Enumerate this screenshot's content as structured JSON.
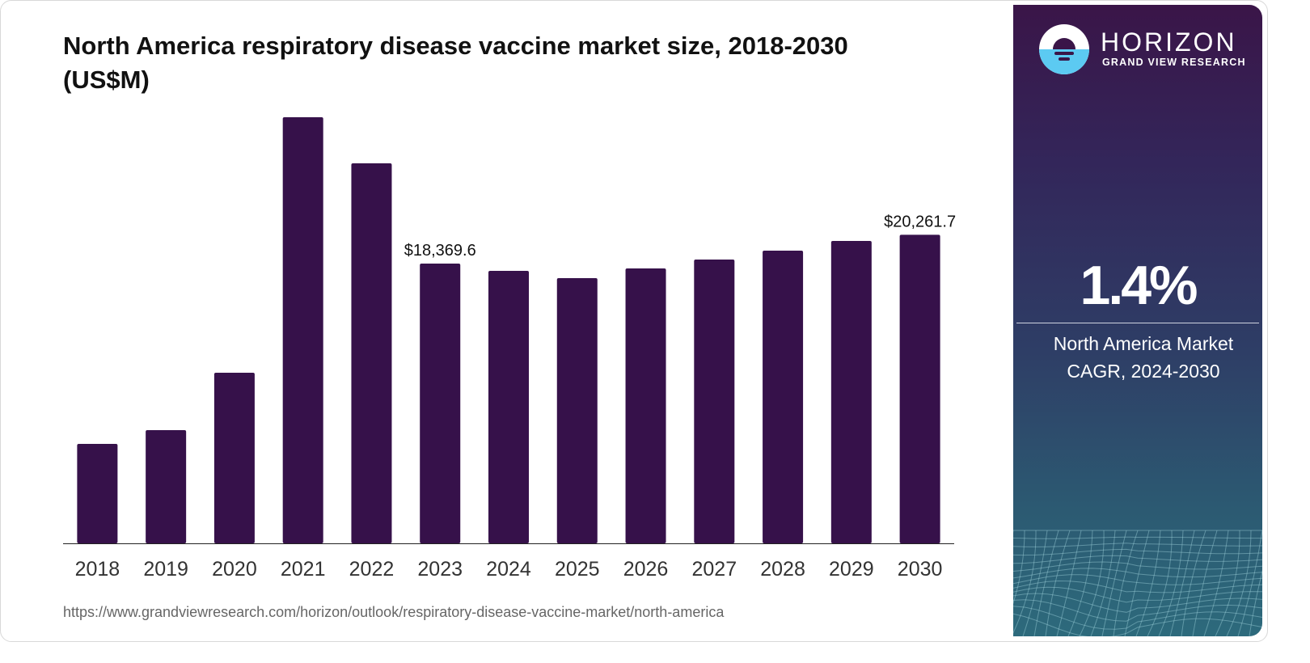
{
  "title": "North America respiratory disease vaccine market size, 2018-2030 (US$M)",
  "source_url": "https://www.grandviewresearch.com/horizon/outlook/respiratory-disease-vaccine-market/north-america",
  "brand": {
    "name": "HORIZON",
    "subtitle": "GRAND VIEW RESEARCH",
    "logo_icon": "horizon-sun-logo"
  },
  "stat": {
    "value": "1.4%",
    "label_line1": "North America Market",
    "label_line2": "CAGR, 2024-2030"
  },
  "colors": {
    "bar": "#36114a",
    "panel_top": "#3a1548",
    "panel_bottom": "#2d6a7c",
    "logo_water": "#5ccaf2"
  },
  "chart_data": {
    "type": "bar",
    "title": "North America respiratory disease vaccine market size, 2018-2030 (US$M)",
    "xlabel": "",
    "ylabel": "",
    "categories": [
      "2018",
      "2019",
      "2020",
      "2021",
      "2022",
      "2023",
      "2024",
      "2025",
      "2026",
      "2027",
      "2028",
      "2029",
      "2030"
    ],
    "values": [
      6530,
      7433,
      11202,
      27979,
      24953,
      18369.6,
      17892,
      17414,
      18051,
      18635,
      19219,
      19856,
      20261.7
    ],
    "ylim": [
      0,
      28000
    ],
    "grid": false,
    "legend": "none",
    "annotations": [
      {
        "category": "2023",
        "text": "$18,369.6"
      },
      {
        "category": "2030",
        "text": "$20,261.7"
      }
    ]
  }
}
